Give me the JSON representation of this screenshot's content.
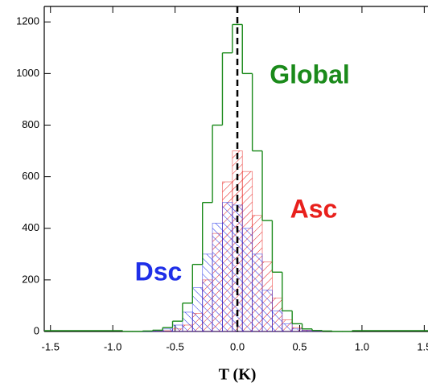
{
  "chart_data": {
    "type": "histogram",
    "xlabel": "T (K)",
    "bins": [
      -0.92,
      -0.84,
      -0.76,
      -0.68,
      -0.6,
      -0.52,
      -0.44,
      -0.36,
      -0.28,
      -0.2,
      -0.12,
      -0.04,
      0.04,
      0.12,
      0.2,
      0.28,
      0.36,
      0.44,
      0.52,
      0.6,
      0.68,
      0.76,
      0.84,
      0.92
    ],
    "series": [
      {
        "name": "Asc",
        "color": "#e8201c",
        "style": "hatch",
        "values": [
          0,
          0,
          0,
          1,
          3,
          10,
          25,
          70,
          200,
          380,
          580,
          700,
          620,
          450,
          270,
          130,
          45,
          15,
          5,
          2,
          0,
          0,
          0
        ]
      },
      {
        "name": "Dsc",
        "color": "#1f2fe8",
        "style": "hatch",
        "values": [
          0,
          0,
          1,
          3,
          10,
          25,
          75,
          170,
          300,
          420,
          500,
          490,
          400,
          300,
          160,
          80,
          30,
          10,
          4,
          1,
          0,
          0,
          0
        ]
      },
      {
        "name": "Global",
        "color": "#1a8a1a",
        "style": "outline",
        "values": [
          0,
          0,
          2,
          5,
          15,
          40,
          110,
          260,
          500,
          800,
          1080,
          1190,
          1000,
          700,
          430,
          230,
          80,
          30,
          10,
          4,
          2,
          0,
          0
        ]
      }
    ],
    "vline": 0,
    "xlim": [
      -1.55,
      1.53
    ],
    "ylim": [
      0,
      1260
    ],
    "xticks": [
      -1.5,
      {
        "value": -1,
        "label": "-1.0"
      },
      -0.5,
      {
        "value": 0,
        "label": "0.0"
      },
      0.5,
      {
        "value": 1,
        "label": "1.0"
      },
      1.5
    ],
    "yticks": [
      0,
      200,
      400,
      600,
      800,
      1000,
      1200
    ]
  }
}
